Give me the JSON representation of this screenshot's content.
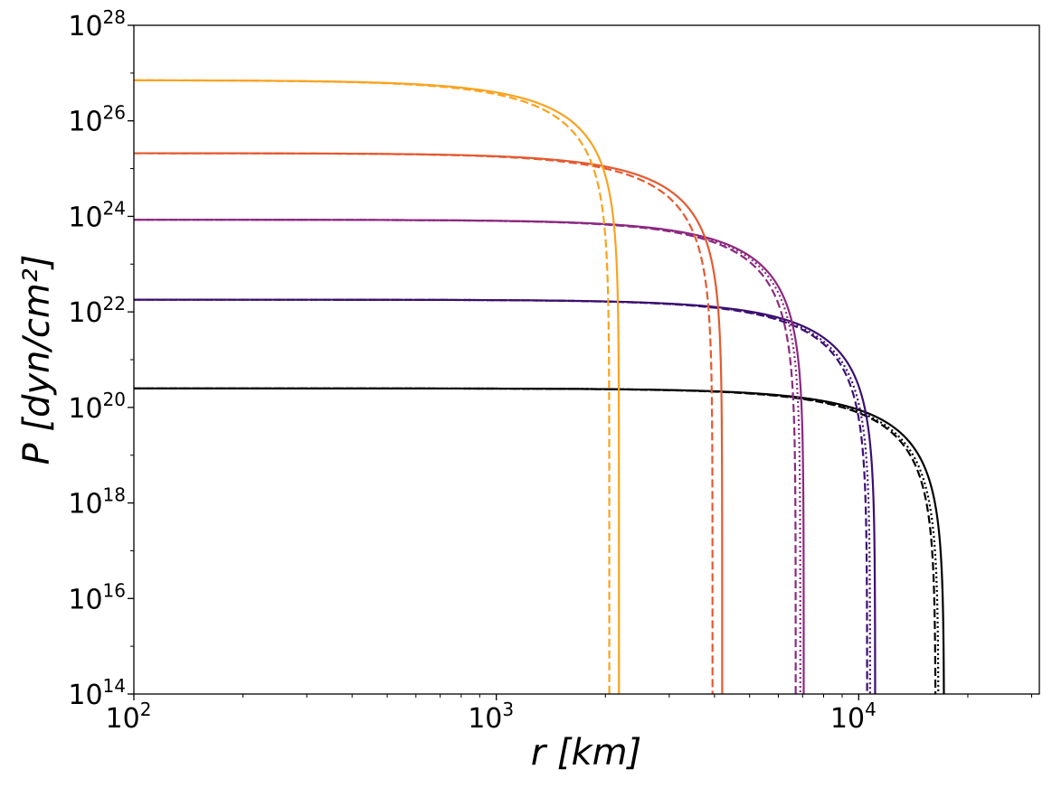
{
  "chart_data": {
    "type": "line",
    "title": "",
    "xlabel": "r [km]",
    "ylabel": "P [dyn/cm²]",
    "xscale": "log",
    "yscale": "log",
    "xlim": [
      100,
      31500
    ],
    "ylim": [
      100000000000000.0,
      1e+28
    ],
    "grid": false,
    "legend": "none",
    "x_ticks": [
      {
        "value": 100,
        "base": "10",
        "exp": "2"
      },
      {
        "value": 1000,
        "base": "10",
        "exp": "3"
      },
      {
        "value": 10000,
        "base": "10",
        "exp": "4"
      }
    ],
    "y_ticks": [
      {
        "value": 100000000000000.0,
        "base": "10",
        "exp": "14"
      },
      {
        "value": 1e+16,
        "base": "10",
        "exp": "16"
      },
      {
        "value": 1e+18,
        "base": "10",
        "exp": "18"
      },
      {
        "value": 1e+20,
        "base": "10",
        "exp": "20"
      },
      {
        "value": 1e+22,
        "base": "10",
        "exp": "22"
      },
      {
        "value": 1e+24,
        "base": "10",
        "exp": "24"
      },
      {
        "value": 1e+26,
        "base": "10",
        "exp": "26"
      },
      {
        "value": 1e+28,
        "base": "10",
        "exp": "28"
      }
    ],
    "series": [
      {
        "color": "#000000",
        "style": "solid",
        "P0": 2.5e+20,
        "R": 17200,
        "n": 1.5
      },
      {
        "color": "#000000",
        "style": "dashed",
        "P0": 2.5e+20,
        "R": 16300,
        "n": 1.5
      },
      {
        "color": "#000000",
        "style": "dotted",
        "P0": 2.5e+20,
        "R": 16600,
        "n": 1.5
      },
      {
        "color": "#3b0f70",
        "style": "solid",
        "P0": 1.8e+22,
        "R": 11100,
        "n": 1.5
      },
      {
        "color": "#3b0f70",
        "style": "dashed",
        "P0": 1.8e+22,
        "R": 10550,
        "n": 1.5
      },
      {
        "color": "#3b0f70",
        "style": "dotted",
        "P0": 1.8e+22,
        "R": 10750,
        "n": 1.5
      },
      {
        "color": "#8c2981",
        "style": "solid",
        "P0": 8.5e+23,
        "R": 7050,
        "n": 1.5
      },
      {
        "color": "#8c2981",
        "style": "dashed",
        "P0": 8.5e+23,
        "R": 6700,
        "n": 1.5
      },
      {
        "color": "#8c2981",
        "style": "dotted",
        "P0": 8.5e+23,
        "R": 6900,
        "n": 1.5
      },
      {
        "color": "#e45a31",
        "style": "solid",
        "P0": 2.1e+25,
        "R": 4200,
        "n": 1.5
      },
      {
        "color": "#e45a31",
        "style": "dashed",
        "P0": 2.1e+25,
        "R": 3950,
        "n": 1.5
      },
      {
        "color": "#f9a31f",
        "style": "solid",
        "P0": 7.1e+26,
        "R": 2180,
        "n": 1.5
      },
      {
        "color": "#f9a31f",
        "style": "dashed",
        "P0": 7.1e+26,
        "R": 2050,
        "n": 1.5
      }
    ]
  }
}
